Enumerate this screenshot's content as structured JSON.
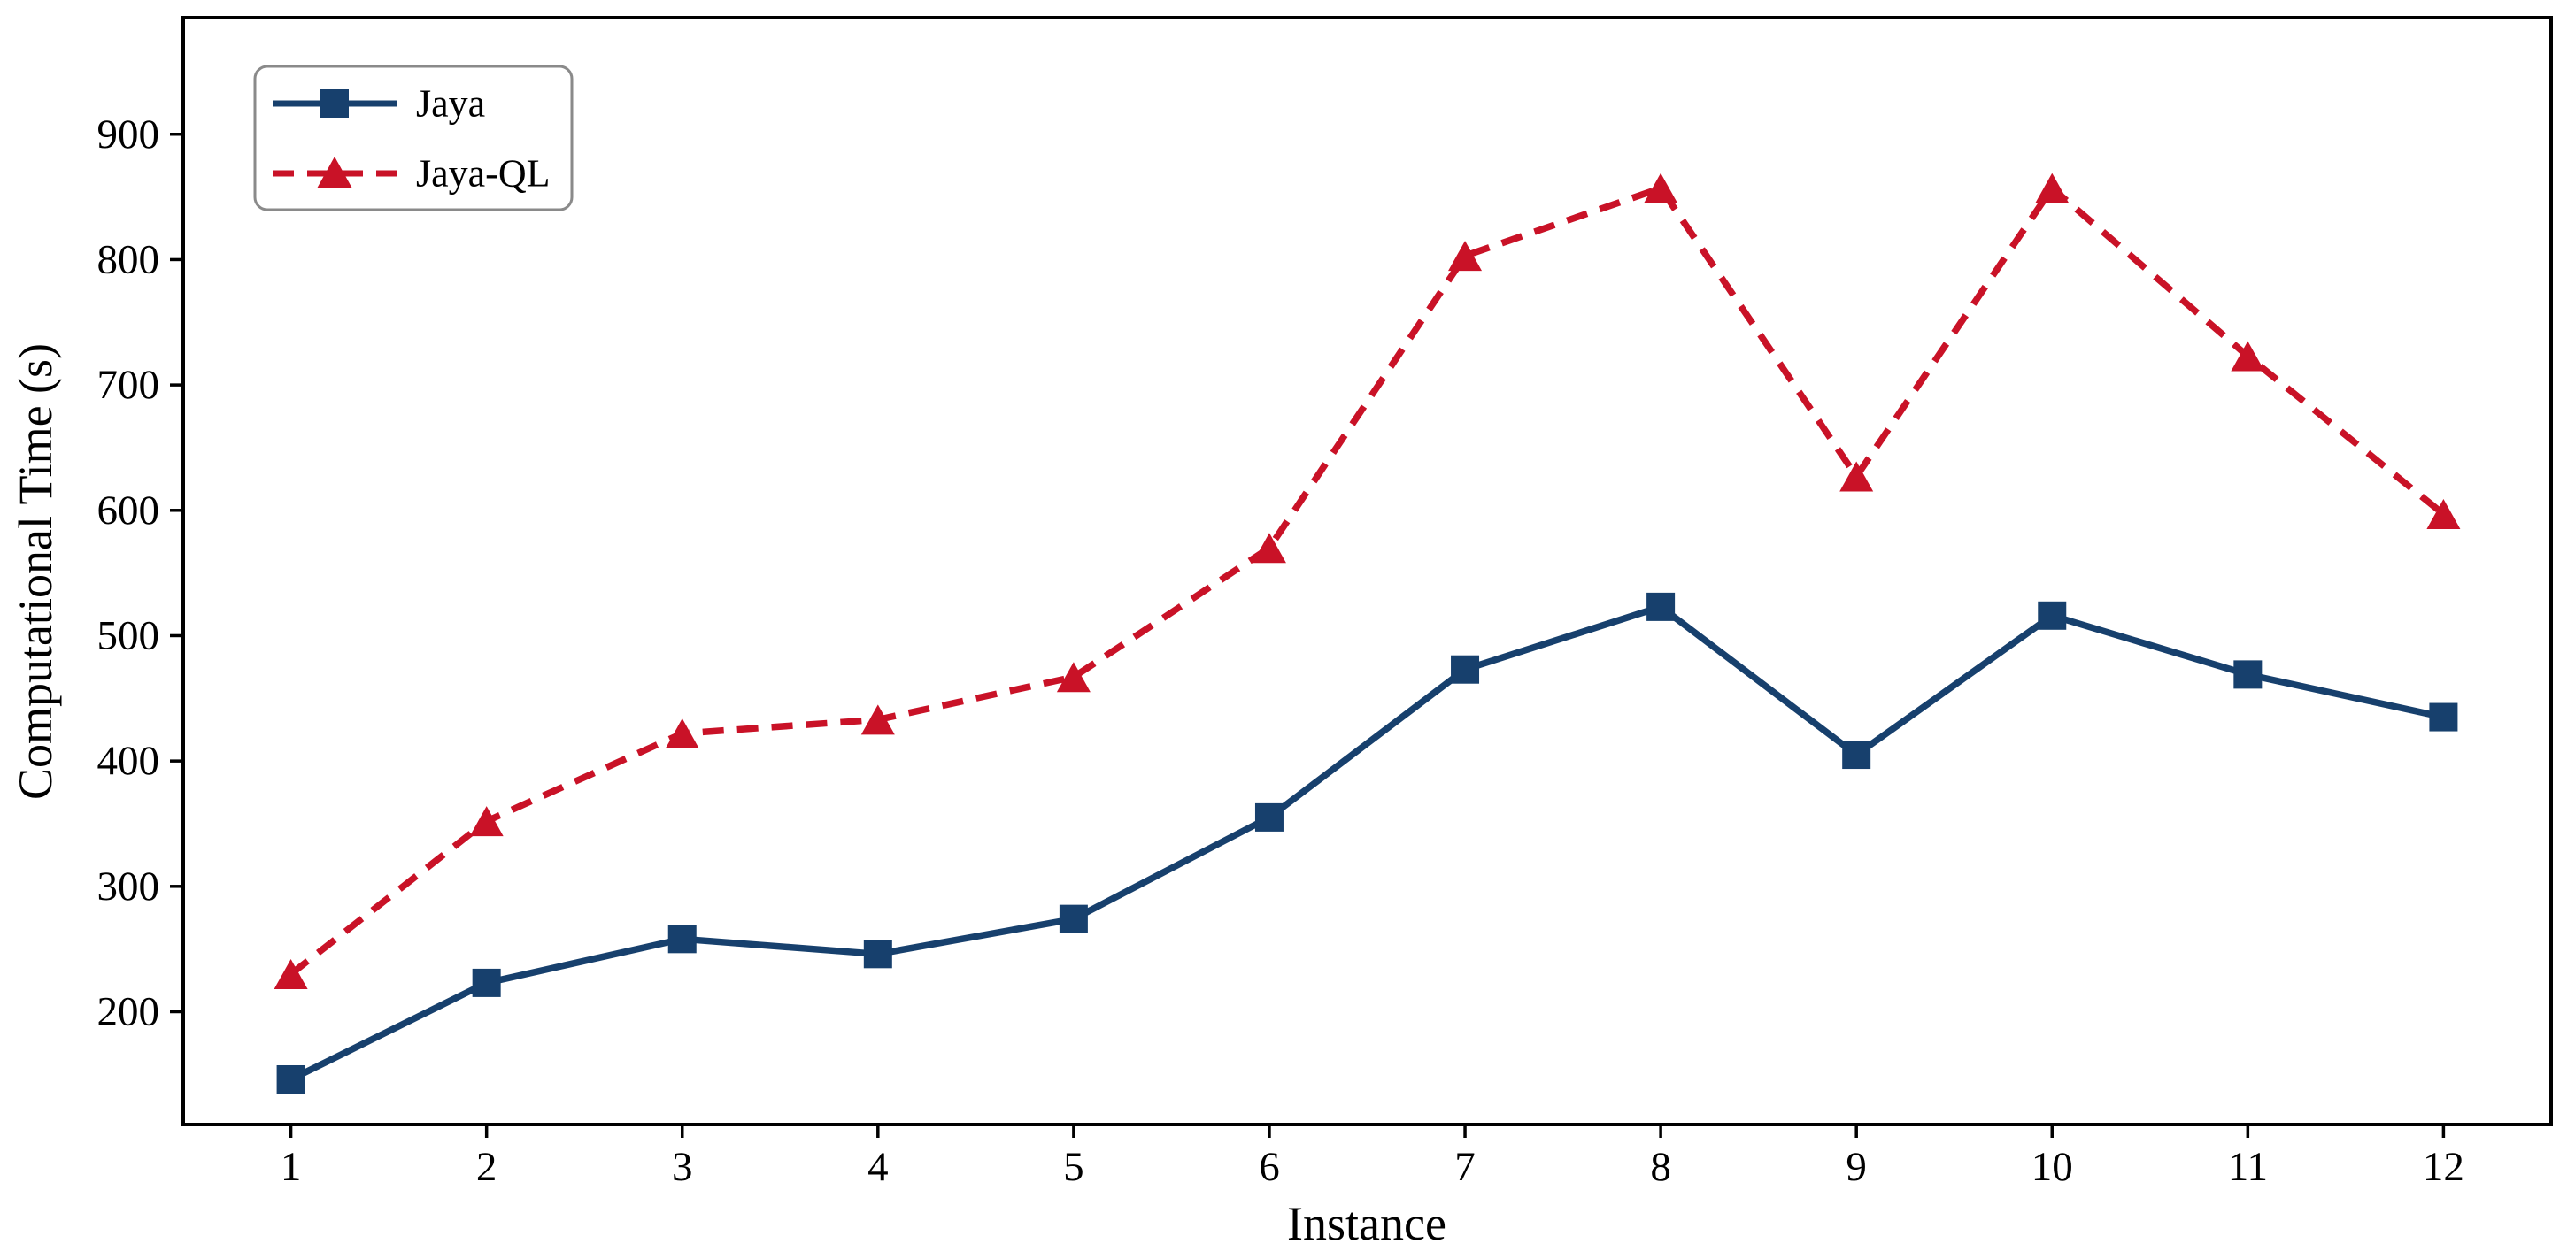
{
  "figure": {
    "background": "#ffffff",
    "axis_color": "#000000",
    "legend_border_color": "#8a8a8a"
  },
  "chart_data": {
    "type": "line",
    "title": "",
    "xlabel": "Instance",
    "ylabel": "Computational Time (s)",
    "x": [
      1,
      2,
      3,
      4,
      5,
      6,
      7,
      8,
      9,
      10,
      11,
      12
    ],
    "series": [
      {
        "name": "Jaya",
        "color": "#17406d",
        "linestyle": "solid",
        "marker": "square",
        "values": [
          146,
          223,
          258,
          246,
          274,
          355,
          473,
          523,
          405,
          516,
          469,
          435
        ]
      },
      {
        "name": "Jaya-QL",
        "color": "#c91227",
        "linestyle": "dashed",
        "marker": "triangle-up",
        "values": [
          230,
          352,
          422,
          433,
          467,
          570,
          803,
          857,
          627,
          857,
          723,
          597
        ]
      }
    ],
    "xlim": [
      0.45,
      12.55
    ],
    "ylim": [
      110,
      993
    ],
    "x_ticks": [
      "1",
      "2",
      "3",
      "4",
      "5",
      "6",
      "7",
      "8",
      "9",
      "10",
      "11",
      "12"
    ],
    "y_ticks": [
      "200",
      "300",
      "400",
      "500",
      "600",
      "700",
      "800",
      "900"
    ],
    "grid": false,
    "legend_position": "upper left"
  }
}
